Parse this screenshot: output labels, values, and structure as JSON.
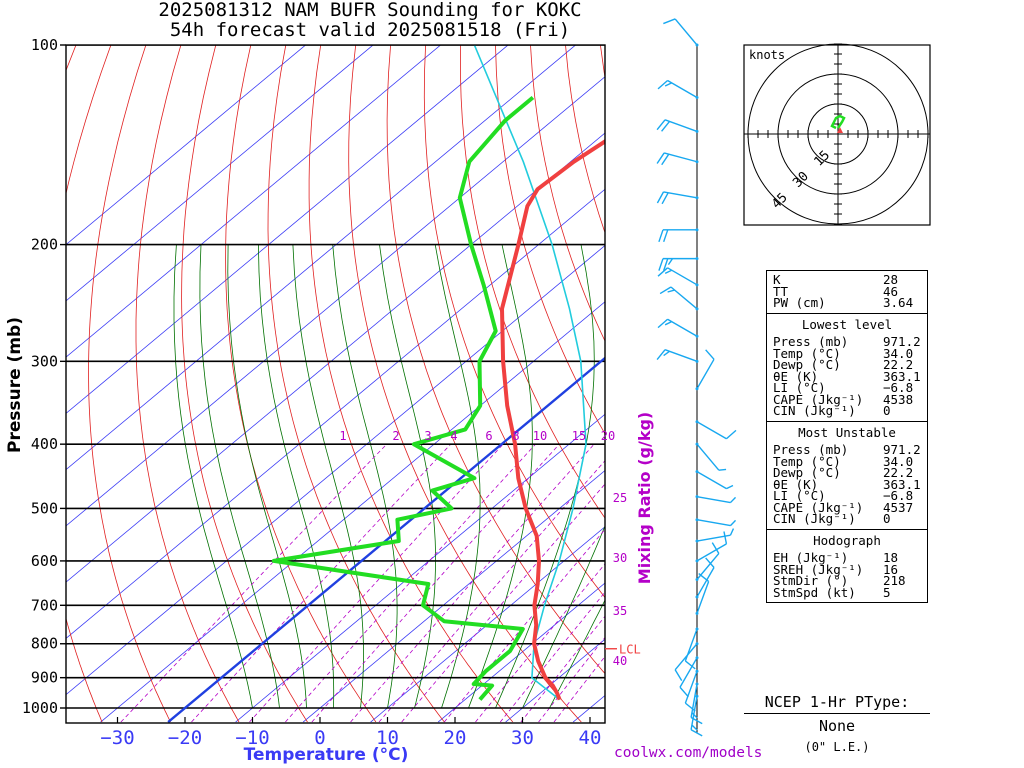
{
  "title": {
    "line1": "2025081312 NAM BUFR Sounding for KOKC",
    "line2": "54h forecast valid 2025081518 (Fri)"
  },
  "source": "coolwx.com/models",
  "colors": {
    "temperature": "#f04040",
    "dewpoint": "#22dd22",
    "parcel": "#22ccdd",
    "isotherm": "#3a3af5",
    "dry_adiabat": "#e02020",
    "moist_adiabat": "#007000",
    "mixing_ratio": "#b400c8",
    "barb": "#18a8f0",
    "axis_label": "#3a3af5"
  },
  "chart_data": {
    "type": "skew-t",
    "ylabel": "Pressure (mb)",
    "xlabel": "Temperature (°C)",
    "mixing_ratio_label": "Mixing Ratio (g/kg)",
    "y_scale": "log",
    "ylim": [
      1000,
      100
    ],
    "xlim": [
      -40,
      40
    ],
    "pressure_ticks": [
      100,
      200,
      300,
      400,
      500,
      600,
      700,
      800,
      900,
      1000
    ],
    "temperature_ticks": [
      "−30",
      "−20",
      "−10",
      "0",
      "10",
      "20",
      "30",
      "40"
    ],
    "mixing_ratio_ticks_top": [
      "1",
      "2",
      "3",
      "4",
      "6",
      "8",
      "10",
      "15",
      "20"
    ],
    "mixing_ratio_ticks_side": [
      "25",
      "30",
      "35",
      "40"
    ],
    "lcl_label": "LCL",
    "lcl_pressure": 800,
    "temperature_profile": [
      {
        "p": 971.2,
        "t": 34.0
      },
      {
        "p": 950,
        "t": 32.5
      },
      {
        "p": 925,
        "t": 30.5
      },
      {
        "p": 900,
        "t": 28.0
      },
      {
        "p": 850,
        "t": 24.0
      },
      {
        "p": 800,
        "t": 20.3
      },
      {
        "p": 750,
        "t": 17.3
      },
      {
        "p": 700,
        "t": 13.5
      },
      {
        "p": 650,
        "t": 10.2
      },
      {
        "p": 600,
        "t": 6.3
      },
      {
        "p": 550,
        "t": 1.5
      },
      {
        "p": 500,
        "t": -5.0
      },
      {
        "p": 450,
        "t": -11.5
      },
      {
        "p": 400,
        "t": -18.0
      },
      {
        "p": 350,
        "t": -26.0
      },
      {
        "p": 300,
        "t": -34.5
      },
      {
        "p": 250,
        "t": -44.0
      },
      {
        "p": 200,
        "t": -53.0
      },
      {
        "p": 175,
        "t": -58.5
      },
      {
        "p": 165,
        "t": -60.0
      },
      {
        "p": 150,
        "t": -59.5
      },
      {
        "p": 135,
        "t": -58.0
      },
      {
        "p": 125,
        "t": -58.0
      },
      {
        "p": 115,
        "t": -60.0
      },
      {
        "p": 100,
        "t": -62.5
      }
    ],
    "dewpoint_profile": [
      {
        "p": 971.2,
        "t": 22.2
      },
      {
        "p": 925,
        "t": 21.5
      },
      {
        "p": 920,
        "t": 18.5
      },
      {
        "p": 880,
        "t": 18.0
      },
      {
        "p": 820,
        "t": 18.0
      },
      {
        "p": 760,
        "t": 16.0
      },
      {
        "p": 740,
        "t": 3.0
      },
      {
        "p": 700,
        "t": -3.0
      },
      {
        "p": 650,
        "t": -6.0
      },
      {
        "p": 600,
        "t": -33.0
      },
      {
        "p": 560,
        "t": -18.0
      },
      {
        "p": 520,
        "t": -22.0
      },
      {
        "p": 500,
        "t": -16.0
      },
      {
        "p": 470,
        "t": -22.0
      },
      {
        "p": 450,
        "t": -18.0
      },
      {
        "p": 400,
        "t": -33.0
      },
      {
        "p": 380,
        "t": -28.0
      },
      {
        "p": 350,
        "t": -30.0
      },
      {
        "p": 300,
        "t": -38.0
      },
      {
        "p": 270,
        "t": -41.0
      },
      {
        "p": 230,
        "t": -51.0
      },
      {
        "p": 200,
        "t": -60.0
      },
      {
        "p": 170,
        "t": -70.0
      },
      {
        "p": 150,
        "t": -75.0
      },
      {
        "p": 130,
        "t": -77.0
      },
      {
        "p": 120,
        "t": -77.0
      }
    ],
    "parcel_profile": [
      {
        "p": 971.2,
        "t": 34.0
      },
      {
        "p": 900,
        "t": 26.0
      },
      {
        "p": 800,
        "t": 20.3
      },
      {
        "p": 700,
        "t": 15.0
      },
      {
        "p": 600,
        "t": 9.3
      },
      {
        "p": 500,
        "t": 2.0
      },
      {
        "p": 400,
        "t": -7.5
      },
      {
        "p": 300,
        "t": -23.0
      },
      {
        "p": 250,
        "t": -34.0
      },
      {
        "p": 200,
        "t": -48.0
      },
      {
        "p": 150,
        "t": -67.0
      },
      {
        "p": 100,
        "t": -95.0
      }
    ],
    "wind_barbs": [
      {
        "p": 100,
        "dir": 320,
        "spd": 10
      },
      {
        "p": 120,
        "dir": 300,
        "spd": 15
      },
      {
        "p": 135,
        "dir": 290,
        "spd": 20
      },
      {
        "p": 150,
        "dir": 285,
        "spd": 20
      },
      {
        "p": 170,
        "dir": 280,
        "spd": 20
      },
      {
        "p": 190,
        "dir": 270,
        "spd": 20
      },
      {
        "p": 210,
        "dir": 270,
        "spd": 25
      },
      {
        "p": 230,
        "dir": 300,
        "spd": 15
      },
      {
        "p": 250,
        "dir": 310,
        "spd": 15
      },
      {
        "p": 275,
        "dir": 300,
        "spd": 15
      },
      {
        "p": 300,
        "dir": 290,
        "spd": 15
      },
      {
        "p": 330,
        "dir": 30,
        "spd": 10
      },
      {
        "p": 370,
        "dir": 120,
        "spd": 10
      },
      {
        "p": 400,
        "dir": 140,
        "spd": 5
      },
      {
        "p": 440,
        "dir": 120,
        "spd": 5
      },
      {
        "p": 480,
        "dir": 100,
        "spd": 5
      },
      {
        "p": 520,
        "dir": 100,
        "spd": 5
      },
      {
        "p": 560,
        "dir": 80,
        "spd": 5
      },
      {
        "p": 600,
        "dir": 60,
        "spd": 10
      },
      {
        "p": 640,
        "dir": 40,
        "spd": 10
      },
      {
        "p": 680,
        "dir": 30,
        "spd": 10
      },
      {
        "p": 720,
        "dir": 20,
        "spd": 10
      },
      {
        "p": 760,
        "dir": 200,
        "spd": 10
      },
      {
        "p": 800,
        "dir": 220,
        "spd": 10
      },
      {
        "p": 840,
        "dir": 210,
        "spd": 10
      },
      {
        "p": 880,
        "dir": 200,
        "spd": 10
      },
      {
        "p": 920,
        "dir": 190,
        "spd": 15
      },
      {
        "p": 960,
        "dir": 190,
        "spd": 15
      }
    ],
    "hodograph": {
      "units_label": "knots",
      "ring_labels": [
        "15",
        "30",
        "45"
      ],
      "ring_speeds": [
        15,
        30,
        45
      ],
      "trace": [
        {
          "u": 0,
          "v": 3
        },
        {
          "u": 2,
          "v": 6
        },
        {
          "u": 3,
          "v": 8
        },
        {
          "u": 1,
          "v": 9
        },
        {
          "u": -1,
          "v": 8
        },
        {
          "u": -2,
          "v": 6
        },
        {
          "u": -3,
          "v": 4
        },
        {
          "u": -1,
          "v": 3
        }
      ],
      "storm_motion": {
        "u": 1,
        "v": 2
      }
    }
  },
  "stats": {
    "indices": [
      {
        "label": "K",
        "value": "28"
      },
      {
        "label": "TT",
        "value": "46"
      },
      {
        "label": "PW (cm)",
        "value": "3.64"
      }
    ],
    "lowest_level": {
      "heading": "Lowest level",
      "rows": [
        {
          "label": "Press (mb)",
          "value": "971.2"
        },
        {
          "label": "Temp (°C)",
          "value": "34.0"
        },
        {
          "label": "Dewp (°C)",
          "value": "22.2"
        },
        {
          "label": "θE (K)",
          "value": "363.1"
        },
        {
          "label": "LI (°C)",
          "value": "−6.8"
        },
        {
          "label": "CAPE (Jkg⁻¹)",
          "value": "4538"
        },
        {
          "label": "CIN (Jkg⁻¹)",
          "value": "0"
        }
      ]
    },
    "most_unstable": {
      "heading": "Most Unstable",
      "rows": [
        {
          "label": "Press (mb)",
          "value": "971.2"
        },
        {
          "label": "Temp (°C)",
          "value": "34.0"
        },
        {
          "label": "Dewp (°C)",
          "value": "22.2"
        },
        {
          "label": "θE (K)",
          "value": "363.1"
        },
        {
          "label": "LI (°C)",
          "value": "−6.8"
        },
        {
          "label": "CAPE (Jkg⁻¹)",
          "value": "4537"
        },
        {
          "label": "CIN (Jkg⁻¹)",
          "value": "0"
        }
      ]
    },
    "hodograph_section": {
      "heading": "Hodograph",
      "rows": [
        {
          "label": "EH (Jkg⁻¹)",
          "value": "18"
        },
        {
          "label": "SREH (Jkg⁻¹)",
          "value": "16"
        },
        {
          "label": "StmDir (°)",
          "value": "218"
        },
        {
          "label": "StmSpd (kt)",
          "value": "5"
        }
      ]
    }
  },
  "ptype": {
    "title": "NCEP 1-Hr PType:",
    "value": "None",
    "note": "(0\" L.E.)"
  }
}
